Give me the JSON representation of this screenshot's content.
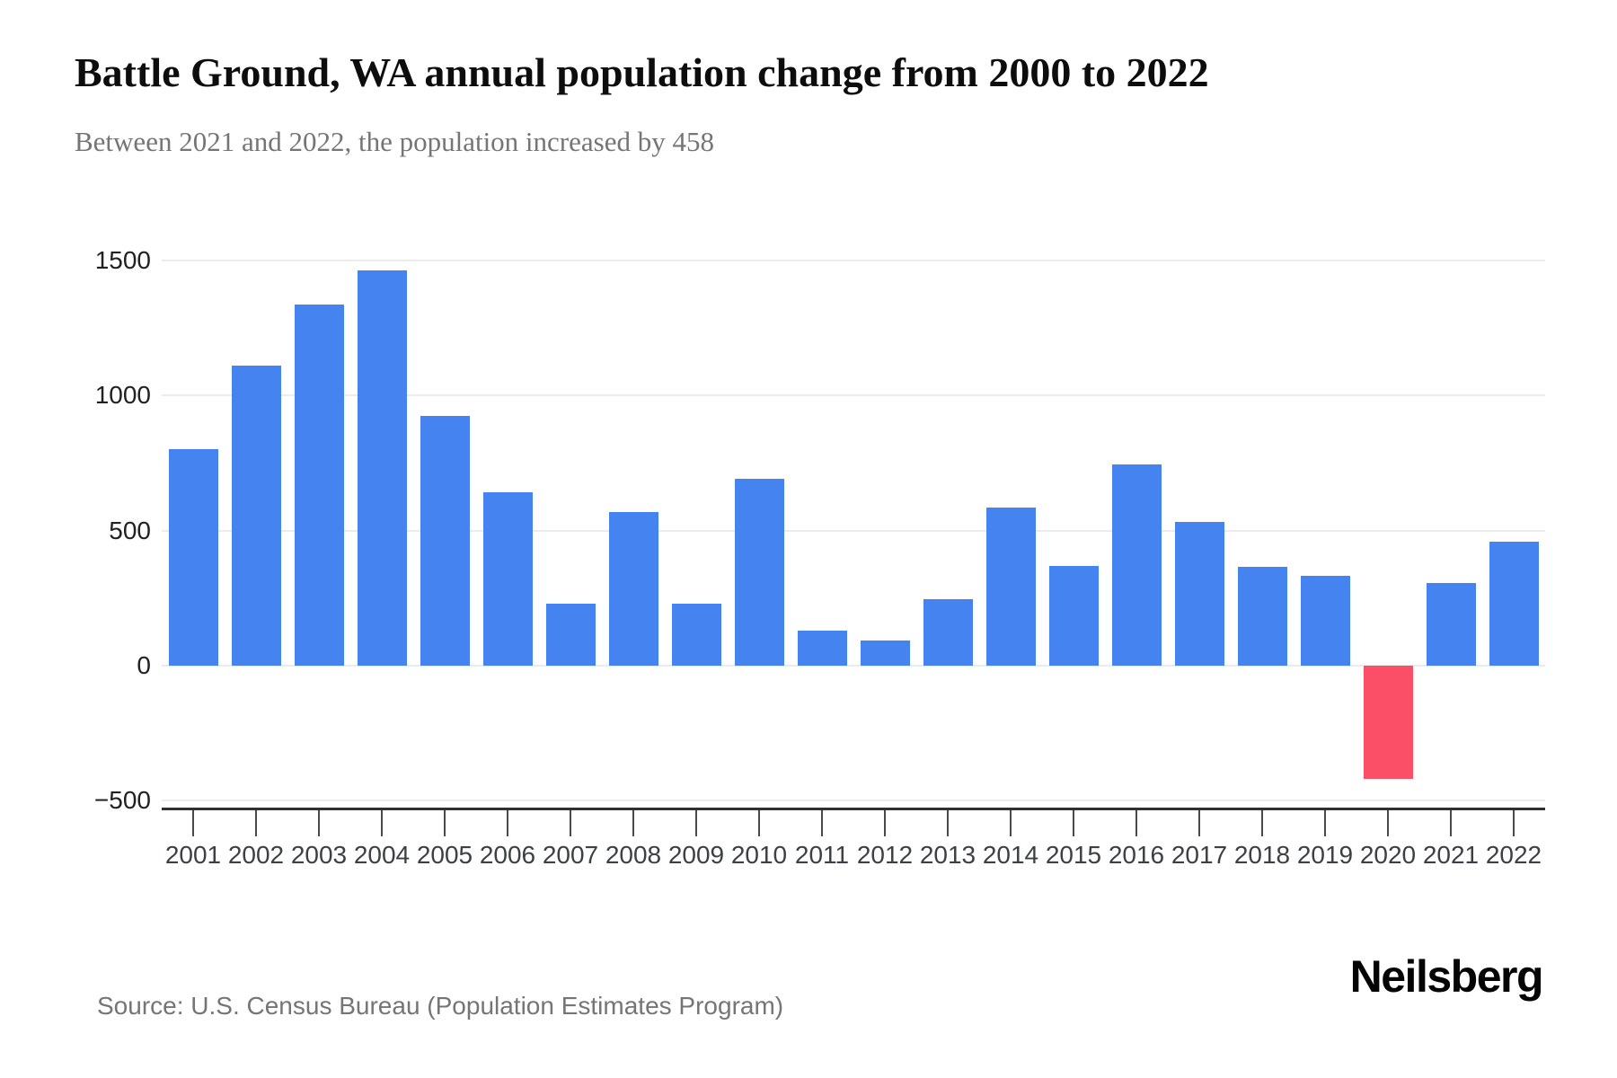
{
  "header": {
    "title": "Battle Ground, WA annual population change from 2000 to 2022",
    "subtitle": "Between 2021 and 2022, the population increased by 458"
  },
  "footer": {
    "source": "Source: U.S. Census Bureau (Population Estimates Program)",
    "logo": "Neilsberg"
  },
  "colors": {
    "positive_bar": "#4583f0",
    "negative_bar": "#fb4f68",
    "gridline": "#ececec",
    "axis_line": "#2f2f2f",
    "tick": "#4a4a4a",
    "y_label": "#212121",
    "x_label": "#3c4043"
  },
  "chart_data": {
    "type": "bar",
    "title": "Battle Ground, WA annual population change from 2000 to 2022",
    "subtitle": "Between 2021 and 2022, the population increased by 458",
    "xlabel": "",
    "ylabel": "",
    "categories": [
      "2001",
      "2002",
      "2003",
      "2004",
      "2005",
      "2006",
      "2007",
      "2008",
      "2009",
      "2010",
      "2011",
      "2012",
      "2013",
      "2014",
      "2015",
      "2016",
      "2017",
      "2018",
      "2019",
      "2020",
      "2021",
      "2022"
    ],
    "values": [
      801,
      1110,
      1337,
      1465,
      925,
      643,
      228,
      568,
      228,
      691,
      130,
      93,
      247,
      584,
      369,
      744,
      532,
      366,
      331,
      -422,
      305,
      458
    ],
    "ylim": [
      -500,
      1500
    ],
    "yticks": [
      1500,
      1000,
      500,
      0,
      -500
    ],
    "ytick_labels": [
      "1500",
      "1000",
      "500",
      "0",
      "−500"
    ],
    "grid": true,
    "legend": false,
    "bar_color_positive": "#4583f0",
    "bar_color_negative": "#fb4f68"
  }
}
